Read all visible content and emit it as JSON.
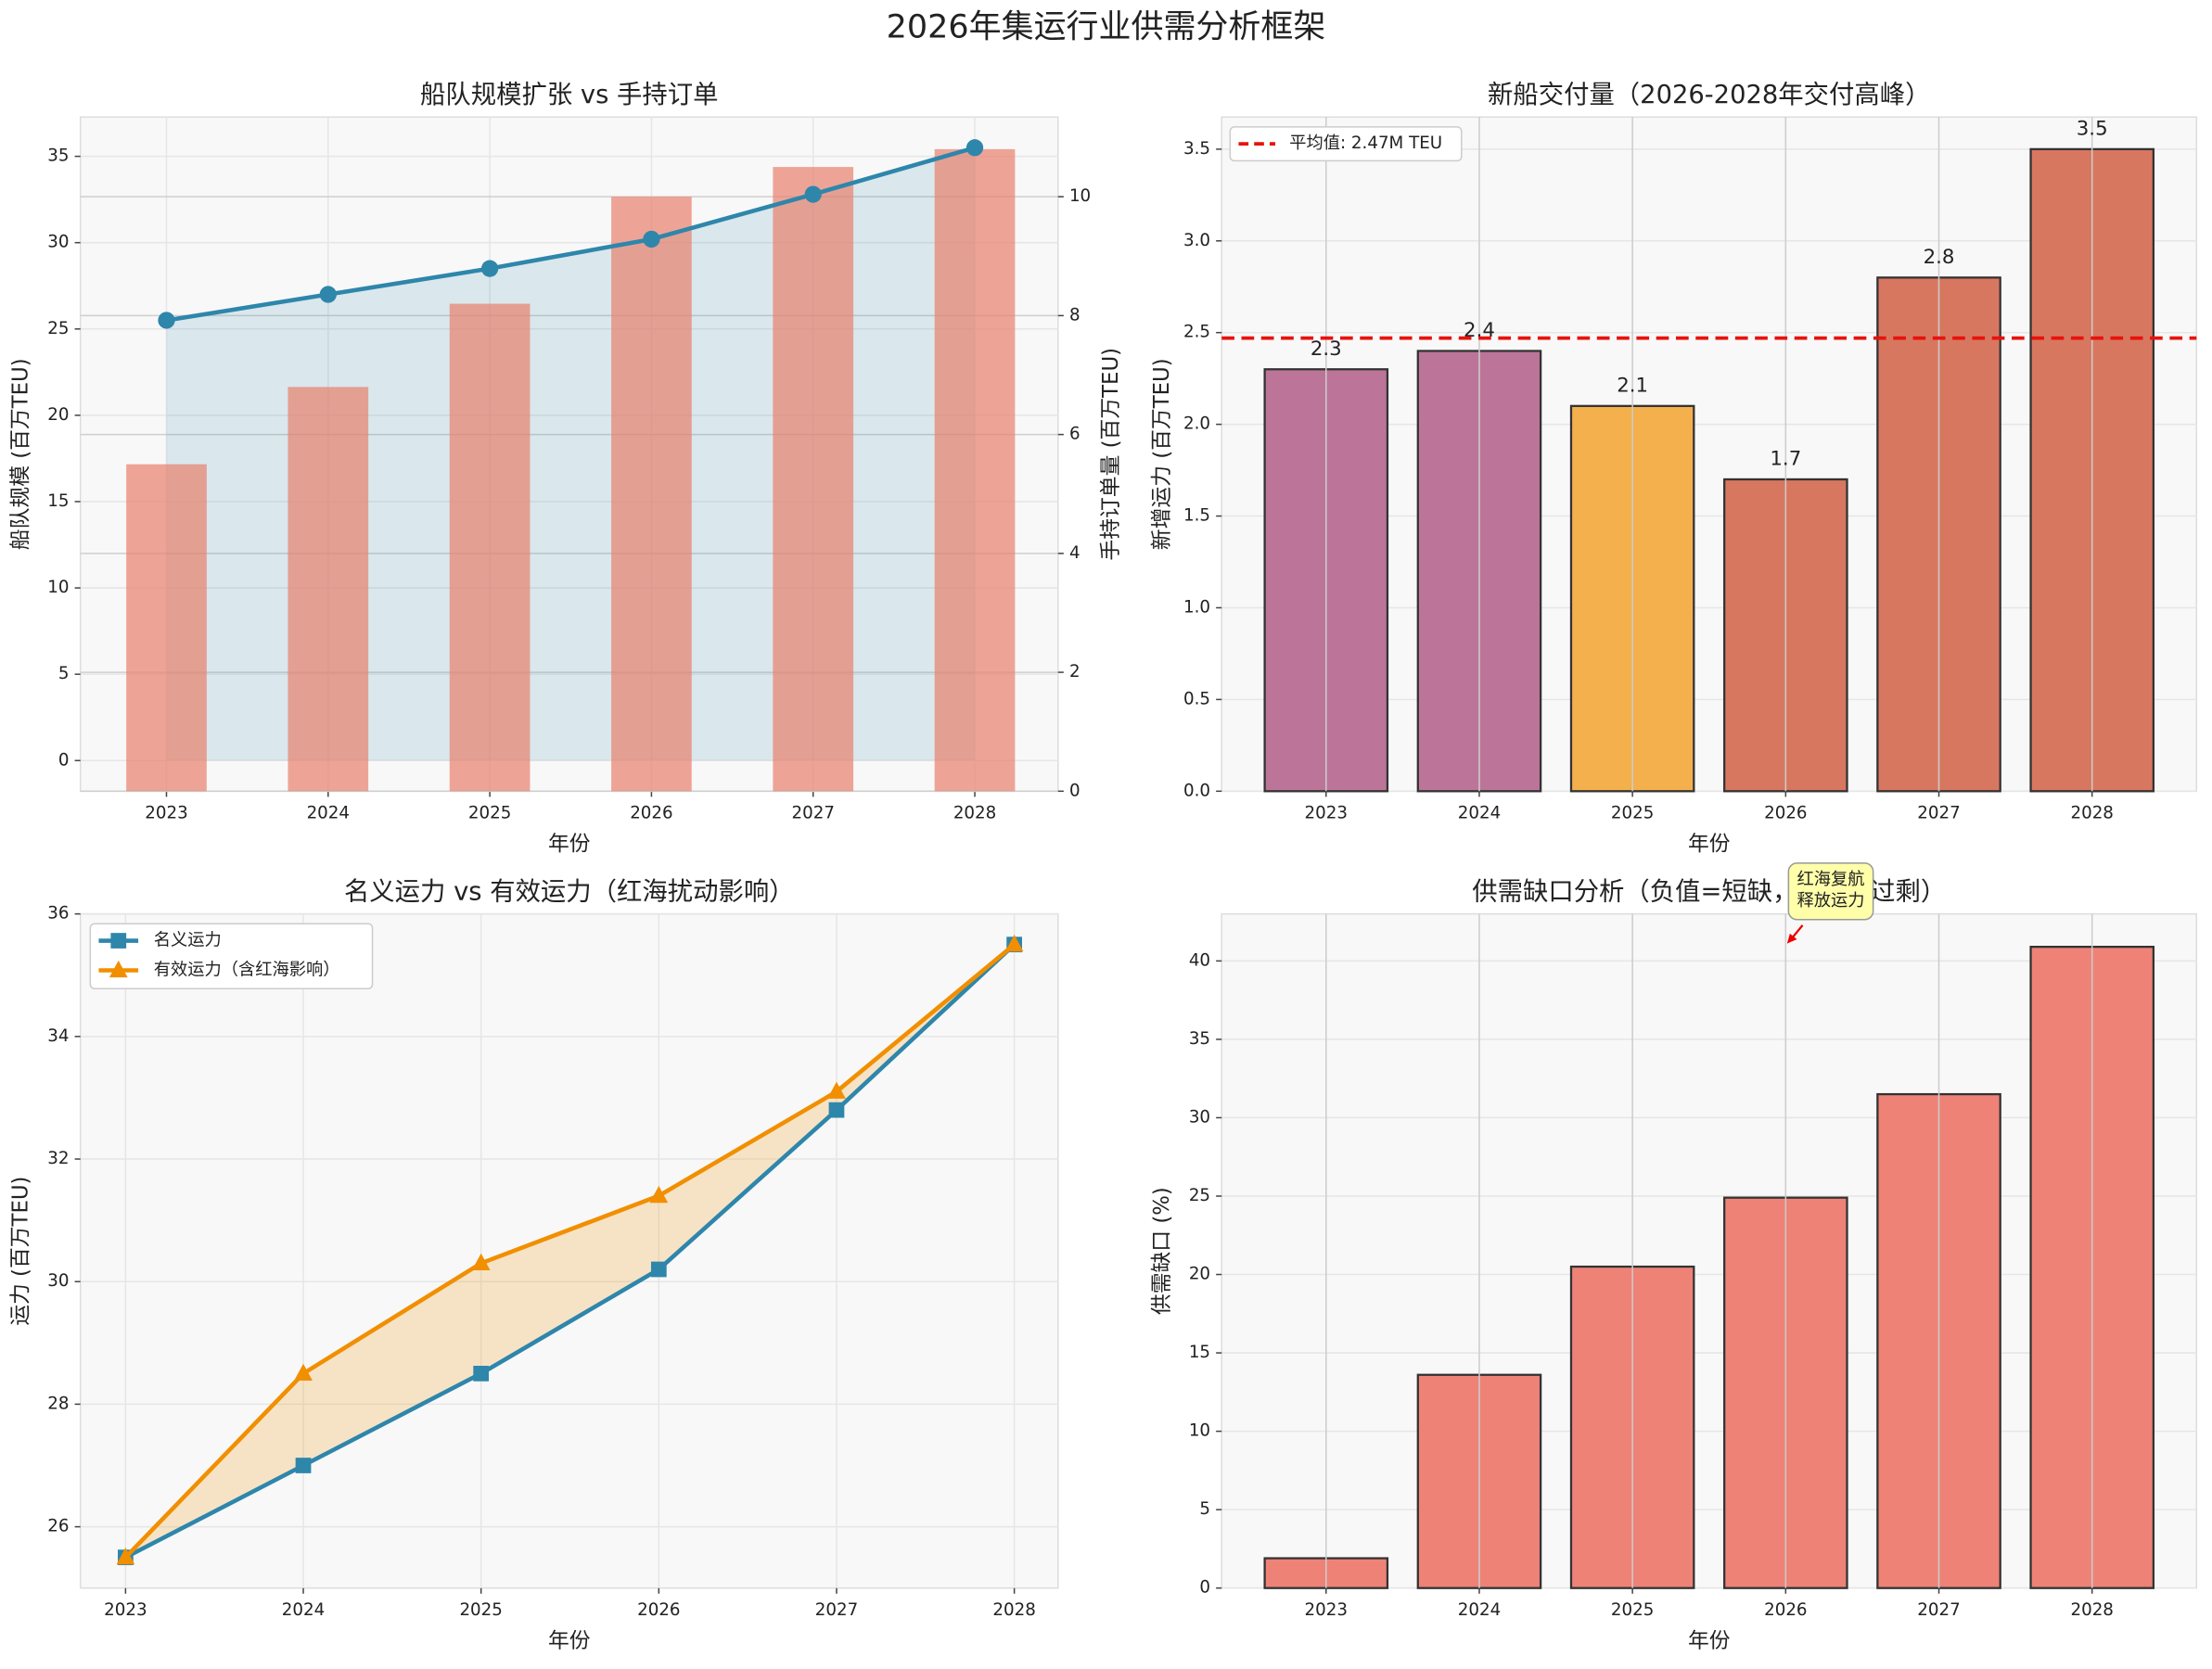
{
  "title": "2026年集运行业供需分析框架",
  "chart_data": [
    {
      "type": "combo",
      "title": "船队规模扩张 vs 手持订单",
      "xlabel": "年份",
      "ylabel": "船队规模 (百万TEU)",
      "y2label": "手持订单量 (百万TEU)",
      "categories": [
        "2023",
        "2024",
        "2025",
        "2026",
        "2027",
        "2028"
      ],
      "series": [
        {
          "kind": "line",
          "color": "#2e86ab",
          "values": [
            25.5,
            27.0,
            28.5,
            30.2,
            32.8,
            35.5
          ]
        },
        {
          "kind": "bar",
          "axis": "y2",
          "color": "#e8806e",
          "values": [
            5.5,
            6.8,
            8.2,
            10.0,
            10.5,
            10.8
          ]
        }
      ],
      "ylim": [
        -1.775,
        37.275
      ],
      "yticks": [
        0,
        5,
        10,
        15,
        20,
        25,
        30,
        35
      ],
      "y2lim": [
        0,
        11.34
      ],
      "y2ticks": [
        0,
        2,
        4,
        6,
        8,
        10
      ],
      "grid": true
    },
    {
      "type": "bar",
      "title": "新船交付量（2026-2028年交付高峰）",
      "xlabel": "年份",
      "ylabel": "新增运力 (百万TEU)",
      "categories": [
        "2023",
        "2024",
        "2025",
        "2026",
        "2027",
        "2028"
      ],
      "values": [
        2.3,
        2.4,
        2.1,
        1.7,
        2.8,
        3.5
      ],
      "colors": [
        "#bc7598",
        "#bc7598",
        "#f3b04d",
        "#d87760",
        "#d87760",
        "#d87760"
      ],
      "show_values": true,
      "reference_line": {
        "value": 2.47,
        "label": "平均值: 2.47M TEU",
        "color": "#e8120c"
      },
      "legend": "upper left",
      "ylim": [
        0,
        3.675
      ],
      "yticks": [
        {
          "value": 0,
          "label": "0.0"
        },
        {
          "value": 0.5,
          "label": "0.5"
        },
        {
          "value": 1,
          "label": "1.0"
        },
        {
          "value": 1.5,
          "label": "1.5"
        },
        {
          "value": 2,
          "label": "2.0"
        },
        {
          "value": 2.5,
          "label": "2.5"
        },
        {
          "value": 3,
          "label": "3.0"
        },
        {
          "value": 3.5,
          "label": "3.5"
        }
      ],
      "grid": true
    },
    {
      "type": "line",
      "title": "名义运力 vs 有效运力（红海扰动影响）",
      "xlabel": "年份",
      "ylabel": "运力 (百万TEU)",
      "categories": [
        "2023",
        "2024",
        "2025",
        "2026",
        "2027",
        "2028"
      ],
      "series": [
        {
          "name": "名义运力",
          "color": "#2e86ab",
          "marker": "square",
          "values": [
            25.5,
            27.0,
            28.5,
            30.2,
            32.8,
            35.5
          ]
        },
        {
          "name": "有效运力（含红海影响）",
          "color": "#f18f01",
          "marker": "triangle",
          "values": [
            25.5,
            28.5,
            30.3,
            31.4,
            33.1,
            35.5
          ]
        }
      ],
      "fill_between": true,
      "legend": "upper left",
      "ylim": [
        25.0,
        36
      ],
      "yticks": [
        26,
        28,
        30,
        32,
        34,
        36
      ],
      "grid": true
    },
    {
      "type": "bar",
      "title": "供需缺口分析（负值=短缺，正值=过剩）",
      "xlabel": "年份",
      "ylabel": "供需缺口 (%)",
      "categories": [
        "2023",
        "2024",
        "2025",
        "2026",
        "2027",
        "2028"
      ],
      "values": [
        1.9,
        13.6,
        20.5,
        24.9,
        31.5,
        40.9
      ],
      "color": "#ee8277",
      "annotation": {
        "lines": [
          "红海复航",
          "释放运力"
        ],
        "at": "2026"
      },
      "ylim": [
        0,
        43.0
      ],
      "yticks": [
        0,
        5,
        10,
        15,
        20,
        25,
        30,
        35,
        40
      ],
      "grid": true
    }
  ]
}
